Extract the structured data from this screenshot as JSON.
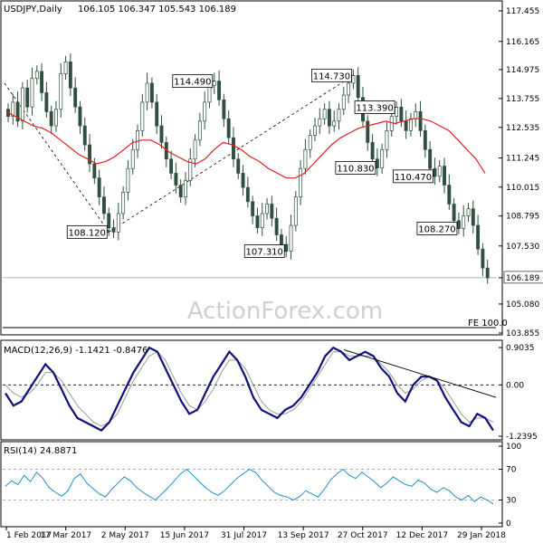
{
  "chart_data": [
    {
      "type": "candlestick",
      "title": "USDJPY,Daily",
      "ohlc": "106.105 106.347 105.543 106.189",
      "ylim": [
        103.855,
        117.455
      ],
      "yticks": [
        "117.455",
        "116.165",
        "114.975",
        "113.755",
        "112.535",
        "111.245",
        "110.015",
        "108.795",
        "107.530",
        "106.189",
        "105.080",
        "103.855"
      ],
      "xticks": [
        "1 Feb 2017",
        "17 Mar 2017",
        "2 May 2017",
        "15 Jun 2017",
        "31 Jul 2017",
        "13 Sep 2017",
        "27 Oct 2017",
        "12 Dec 2017",
        "29 Jan 2018"
      ],
      "last_price": "106.189",
      "series": [
        {
          "name": "price",
          "values": [
            113.0,
            113.6,
            112.8,
            114.2,
            113.4,
            114.6,
            114.9,
            114.0,
            113.2,
            112.6,
            113.3,
            114.8,
            115.3,
            114.2,
            113.4,
            112.6,
            111.8,
            111.0,
            110.4,
            109.6,
            108.9,
            108.3,
            108.12,
            108.9,
            109.8,
            110.8,
            111.6,
            112.4,
            113.6,
            114.4,
            113.6,
            112.6,
            111.9,
            111.2,
            110.6,
            110.1,
            109.6,
            110.3,
            111.2,
            112.0,
            112.8,
            113.6,
            114.3,
            114.49,
            113.7,
            112.9,
            112.1,
            111.2,
            110.6,
            110.0,
            109.4,
            108.8,
            108.3,
            108.9,
            109.3,
            108.7,
            108.0,
            107.6,
            107.31,
            108.4,
            109.6,
            110.8,
            111.6,
            112.2,
            112.6,
            112.9,
            113.3,
            112.6,
            112.8,
            113.3,
            113.9,
            114.4,
            114.73,
            113.8,
            112.8,
            111.9,
            111.2,
            110.83,
            111.6,
            112.4,
            113.0,
            113.39,
            112.8,
            112.4,
            112.9,
            113.2,
            112.4,
            111.6,
            110.8,
            110.47,
            110.9,
            110.1,
            109.3,
            108.6,
            108.27,
            108.8,
            109.1,
            108.4,
            107.4,
            106.6,
            106.189
          ]
        },
        {
          "name": "SMA",
          "values": [
            113.2,
            113.0,
            112.8,
            112.6,
            112.5,
            112.3,
            112.0,
            111.7,
            111.4,
            111.2,
            111.0,
            111.1,
            111.3,
            111.6,
            111.9,
            112.0,
            112.0,
            111.8,
            111.5,
            111.3,
            111.1,
            111.0,
            111.2,
            111.6,
            111.9,
            111.8,
            111.6,
            111.3,
            111.1,
            110.8,
            110.6,
            110.4,
            110.4,
            110.6,
            111.0,
            111.4,
            111.8,
            112.1,
            112.3,
            112.5,
            112.6,
            112.7,
            112.8,
            112.7,
            112.8,
            112.9,
            112.9,
            112.8,
            112.6,
            112.4,
            112.0,
            111.6,
            111.2,
            110.6
          ]
        }
      ],
      "annotations": [
        "108.120",
        "114.490",
        "107.310",
        "114.730",
        "110.830",
        "113.390",
        "110.470",
        "108.270"
      ],
      "fe_label": "FE 100.0",
      "watermark": "ActionForex.com"
    },
    {
      "type": "line",
      "title": "MACD(12,26,9) -1.1421 -0.8476",
      "yticks": [
        "0.9035",
        "0.00",
        "-1.2395"
      ],
      "ylim": [
        -1.2395,
        0.9035
      ],
      "series": [
        {
          "name": "MACD",
          "values": [
            -0.2,
            -0.5,
            -0.4,
            -0.1,
            0.2,
            0.5,
            0.3,
            -0.1,
            -0.5,
            -0.8,
            -0.9,
            -1.0,
            -1.1,
            -0.9,
            -0.5,
            -0.1,
            0.3,
            0.6,
            0.9,
            0.8,
            0.4,
            0.0,
            -0.4,
            -0.7,
            -0.6,
            -0.2,
            0.2,
            0.5,
            0.8,
            0.6,
            0.2,
            -0.3,
            -0.6,
            -0.7,
            -0.8,
            -0.6,
            -0.5,
            -0.3,
            0.0,
            0.3,
            0.7,
            0.9,
            0.8,
            0.6,
            0.7,
            0.8,
            0.7,
            0.4,
            0.2,
            -0.2,
            -0.4,
            0.0,
            0.2,
            0.2,
            0.1,
            -0.3,
            -0.6,
            -0.9,
            -1.0,
            -0.7,
            -0.8,
            -1.1
          ]
        },
        {
          "name": "signal",
          "values": [
            0.0,
            -0.2,
            -0.3,
            -0.2,
            0.0,
            0.3,
            0.3,
            0.1,
            -0.2,
            -0.5,
            -0.7,
            -0.9,
            -1.0,
            -0.9,
            -0.7,
            -0.3,
            0.1,
            0.4,
            0.7,
            0.8,
            0.6,
            0.2,
            -0.2,
            -0.5,
            -0.6,
            -0.4,
            -0.1,
            0.3,
            0.6,
            0.6,
            0.4,
            0.0,
            -0.4,
            -0.6,
            -0.7,
            -0.7,
            -0.6,
            -0.4,
            -0.1,
            0.2,
            0.5,
            0.8,
            0.8,
            0.7,
            0.7,
            0.7,
            0.7,
            0.5,
            0.3,
            0.0,
            -0.2,
            -0.1,
            0.1,
            0.2,
            0.1,
            -0.1,
            -0.4,
            -0.7,
            -0.9,
            -0.8,
            -0.8,
            -0.9
          ]
        }
      ]
    },
    {
      "type": "line",
      "title": "RSI(14) 24.8871",
      "yticks": [
        "100",
        "70",
        "30",
        "0"
      ],
      "ylim": [
        0,
        100
      ],
      "series": [
        {
          "name": "RSI",
          "values": [
            48,
            55,
            50,
            62,
            54,
            66,
            58,
            46,
            40,
            35,
            42,
            58,
            64,
            52,
            45,
            38,
            34,
            44,
            52,
            60,
            55,
            46,
            40,
            35,
            30,
            38,
            46,
            55,
            64,
            70,
            62,
            54,
            46,
            40,
            36,
            42,
            50,
            58,
            64,
            70,
            66,
            56,
            48,
            40,
            36,
            34,
            30,
            34,
            42,
            38,
            34,
            44,
            56,
            64,
            70,
            62,
            58,
            66,
            60,
            54,
            46,
            52,
            60,
            55,
            50,
            48,
            56,
            52,
            44,
            40,
            46,
            42,
            34,
            30,
            36,
            28,
            34,
            30,
            24.8871
          ]
        }
      ]
    }
  ]
}
